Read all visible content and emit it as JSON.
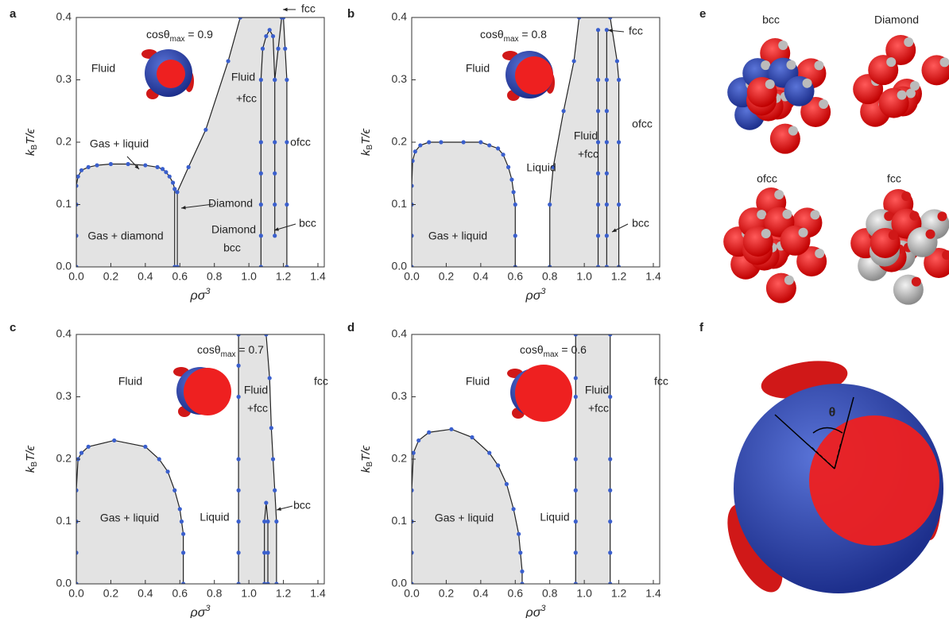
{
  "chart_data": [
    {
      "type": "line",
      "panel": "a",
      "title": [
        "cosθ",
        "max",
        " = 0.9"
      ],
      "xlabel": [
        "ρσ",
        "3"
      ],
      "ylabel": [
        "k",
        "B",
        "T/ϵ"
      ],
      "xlim": [
        0,
        1.4
      ],
      "ylim": [
        0,
        0.4
      ],
      "xticks": [
        {
          "value": 0,
          "label": "0.0"
        },
        0.2,
        0.4,
        0.6,
        0.8,
        {
          "value": 1,
          "label": "1.0"
        },
        1.2,
        1.4
      ],
      "yticks": [
        {
          "value": 0,
          "label": "0.0"
        },
        0.1,
        0.2,
        0.3,
        0.4
      ],
      "annotations": [
        "Fluid",
        "Gas + liquid",
        "Diamond",
        "Gas + diamond",
        "Fluid",
        "+fcc",
        "ofcc",
        "Diamond",
        "bcc",
        "bcc",
        "fcc"
      ],
      "series": [
        {
          "fill": "#e3e3e3",
          "x": [
            0,
            0,
            0,
            0,
            0.01,
            0.03,
            0.07,
            0.12,
            0.2,
            0.3,
            0.4,
            0.47,
            0.5,
            0.52,
            0.54,
            0.56,
            0.57,
            0.57
          ],
          "values": [
            0,
            0.05,
            0.1,
            0.13,
            0.145,
            0.155,
            0.16,
            0.163,
            0.165,
            0.165,
            0.163,
            0.16,
            0.157,
            0.152,
            0.145,
            0.135,
            0.125,
            0
          ]
        },
        {
          "fill": "#e3e3e3",
          "x": [
            0.585,
            0.585,
            0.65,
            0.75,
            0.88,
            0.95,
            1.2,
            1.21,
            1.22,
            1.22,
            1.22,
            1.22
          ],
          "values": [
            0,
            0.12,
            0.16,
            0.22,
            0.33,
            0.4,
            0.4,
            0.35,
            0.3,
            0.2,
            0.1,
            0
          ]
        },
        {
          "x": [
            1.07,
            1.07,
            1.07,
            1.07,
            1.07,
            1.07,
            1.08,
            1.1,
            1.12,
            1.14,
            1.15,
            1.15,
            1.15,
            1.15,
            1.15
          ],
          "values": [
            0,
            0.05,
            0.1,
            0.15,
            0.2,
            0.3,
            0.35,
            0.37,
            0.38,
            0.37,
            0.3,
            0.2,
            0.15,
            0.1,
            0.05
          ]
        },
        {
          "x": [
            1.15,
            1.17,
            1.19
          ],
          "values": [
            0.3,
            0.35,
            0.4
          ]
        }
      ]
    },
    {
      "type": "line",
      "panel": "b",
      "title": [
        "cosθ",
        "max",
        " = 0.8"
      ],
      "xlabel": [
        "ρσ",
        "3"
      ],
      "ylabel": [
        "k",
        "B",
        "T/ϵ"
      ],
      "xlim": [
        0,
        1.4
      ],
      "ylim": [
        0,
        0.4
      ],
      "xticks": [
        {
          "value": 0,
          "label": "0.0"
        },
        0.2,
        0.4,
        0.6,
        0.8,
        {
          "value": 1,
          "label": "1.0"
        },
        1.2,
        1.4
      ],
      "yticks": [
        {
          "value": 0,
          "label": "0.0"
        },
        0.1,
        0.2,
        0.3,
        0.4
      ],
      "annotations": [
        "Fluid",
        "Liquid",
        "Gas + liquid",
        "Fluid",
        "+fcc",
        "ofcc",
        "fcc",
        "bcc"
      ],
      "series": [
        {
          "fill": "#e3e3e3",
          "x": [
            0,
            0,
            0,
            0,
            0.005,
            0.02,
            0.05,
            0.1,
            0.17,
            0.3,
            0.4,
            0.45,
            0.5,
            0.53,
            0.56,
            0.58,
            0.59,
            0.6,
            0.6,
            0.6
          ],
          "values": [
            0,
            0.05,
            0.1,
            0.13,
            0.17,
            0.185,
            0.195,
            0.2,
            0.2,
            0.2,
            0.2,
            0.195,
            0.19,
            0.18,
            0.16,
            0.14,
            0.12,
            0.1,
            0.05,
            0
          ]
        },
        {
          "fill": "#e3e3e3",
          "x": [
            0.8,
            0.8,
            0.82,
            0.88,
            0.94,
            0.97,
            1.15,
            1.19,
            1.2,
            1.2,
            1.2,
            1.2
          ],
          "values": [
            0,
            0.1,
            0.16,
            0.25,
            0.33,
            0.4,
            0.4,
            0.33,
            0.3,
            0.2,
            0.1,
            0
          ]
        },
        {
          "x": [
            1.08,
            1.08,
            1.08,
            1.08,
            1.08,
            1.08,
            1.08,
            1.08
          ],
          "values": [
            0,
            0.05,
            0.1,
            0.15,
            0.2,
            0.25,
            0.3,
            0.38
          ]
        },
        {
          "x": [
            1.13,
            1.13,
            1.13,
            1.13,
            1.13,
            1.13,
            1.13,
            1.13
          ],
          "values": [
            0,
            0.05,
            0.1,
            0.15,
            0.2,
            0.25,
            0.3,
            0.38
          ]
        }
      ]
    },
    {
      "type": "line",
      "panel": "c",
      "title": [
        "cosθ",
        "max",
        " = 0.7"
      ],
      "xlabel": [
        "ρσ",
        "3"
      ],
      "ylabel": [
        "k",
        "B",
        "T/ϵ"
      ],
      "xlim": [
        0,
        1.4
      ],
      "ylim": [
        0,
        0.4
      ],
      "xticks": [
        {
          "value": 0,
          "label": "0.0"
        },
        0.2,
        0.4,
        0.6,
        0.8,
        {
          "value": 1,
          "label": "1.0"
        },
        1.2,
        1.4
      ],
      "yticks": [
        {
          "value": 0,
          "label": "0.0"
        },
        0.1,
        0.2,
        0.3,
        0.4
      ],
      "annotations": [
        "Fluid",
        "Fluid",
        "+fcc",
        "fcc",
        "Gas + liquid",
        "Liquid",
        "bcc"
      ],
      "series": [
        {
          "fill": "#e3e3e3",
          "x": [
            0,
            0,
            0,
            0,
            0.01,
            0.03,
            0.07,
            0.22,
            0.4,
            0.48,
            0.53,
            0.57,
            0.6,
            0.61,
            0.62,
            0.62,
            0.62
          ],
          "values": [
            0,
            0.05,
            0.1,
            0.15,
            0.2,
            0.21,
            0.22,
            0.23,
            0.22,
            0.2,
            0.18,
            0.15,
            0.12,
            0.1,
            0.08,
            0.05,
            0
          ]
        },
        {
          "fill": "#e3e3e3",
          "x": [
            0.94,
            0.94,
            0.94,
            0.94,
            0.94,
            0.94,
            0.94,
            0.94,
            1.1,
            1.12,
            1.13,
            1.14,
            1.15,
            1.16,
            1.16
          ],
          "values": [
            0,
            0.05,
            0.1,
            0.15,
            0.2,
            0.3,
            0.35,
            0.4,
            0.4,
            0.33,
            0.25,
            0.2,
            0.15,
            0.1,
            0
          ]
        },
        {
          "x": [
            1.09,
            1.09,
            1.09,
            1.1,
            1.11,
            1.11,
            1.11
          ],
          "values": [
            0,
            0.05,
            0.1,
            0.13,
            0.1,
            0.05,
            0
          ]
        }
      ]
    },
    {
      "type": "line",
      "panel": "d",
      "title": [
        "cosθ",
        "max",
        " = 0.6"
      ],
      "xlabel": [
        "ρσ",
        "3"
      ],
      "ylabel": [
        "k",
        "B",
        "T/ϵ"
      ],
      "xlim": [
        0,
        1.4
      ],
      "ylim": [
        0,
        0.4
      ],
      "xticks": [
        {
          "value": 0,
          "label": "0.0"
        },
        0.2,
        0.4,
        0.6,
        0.8,
        {
          "value": 1,
          "label": "1.0"
        },
        1.2,
        1.4
      ],
      "yticks": [
        {
          "value": 0,
          "label": "0.0"
        },
        0.1,
        0.2,
        0.3,
        0.4
      ],
      "annotations": [
        "Fluid",
        "Fluid",
        "+fcc",
        "fcc",
        "Gas + liquid",
        "Liquid"
      ],
      "series": [
        {
          "fill": "#e3e3e3",
          "x": [
            0,
            0,
            0,
            0,
            0.01,
            0.04,
            0.1,
            0.23,
            0.35,
            0.45,
            0.5,
            0.55,
            0.59,
            0.62,
            0.63,
            0.64,
            0.64
          ],
          "values": [
            0,
            0.05,
            0.1,
            0.15,
            0.21,
            0.23,
            0.243,
            0.248,
            0.235,
            0.21,
            0.19,
            0.16,
            0.12,
            0.08,
            0.05,
            0.02,
            0
          ]
        },
        {
          "fill": "#e3e3e3",
          "x": [
            0.95,
            0.95,
            0.95,
            0.95,
            0.95,
            0.95,
            0.95,
            0.95,
            1.15,
            1.15,
            1.15,
            1.15,
            1.15,
            1.15,
            1.15
          ],
          "values": [
            0,
            0.05,
            0.1,
            0.15,
            0.2,
            0.3,
            0.33,
            0.4,
            0.4,
            0.3,
            0.2,
            0.15,
            0.1,
            0.05,
            0
          ]
        }
      ]
    }
  ],
  "figure_panels": {
    "e": {
      "label": "e",
      "structures": [
        "bcc",
        "Diamond",
        "ofcc",
        "fcc"
      ]
    },
    "f": {
      "label": "f",
      "angle": "θ"
    }
  }
}
